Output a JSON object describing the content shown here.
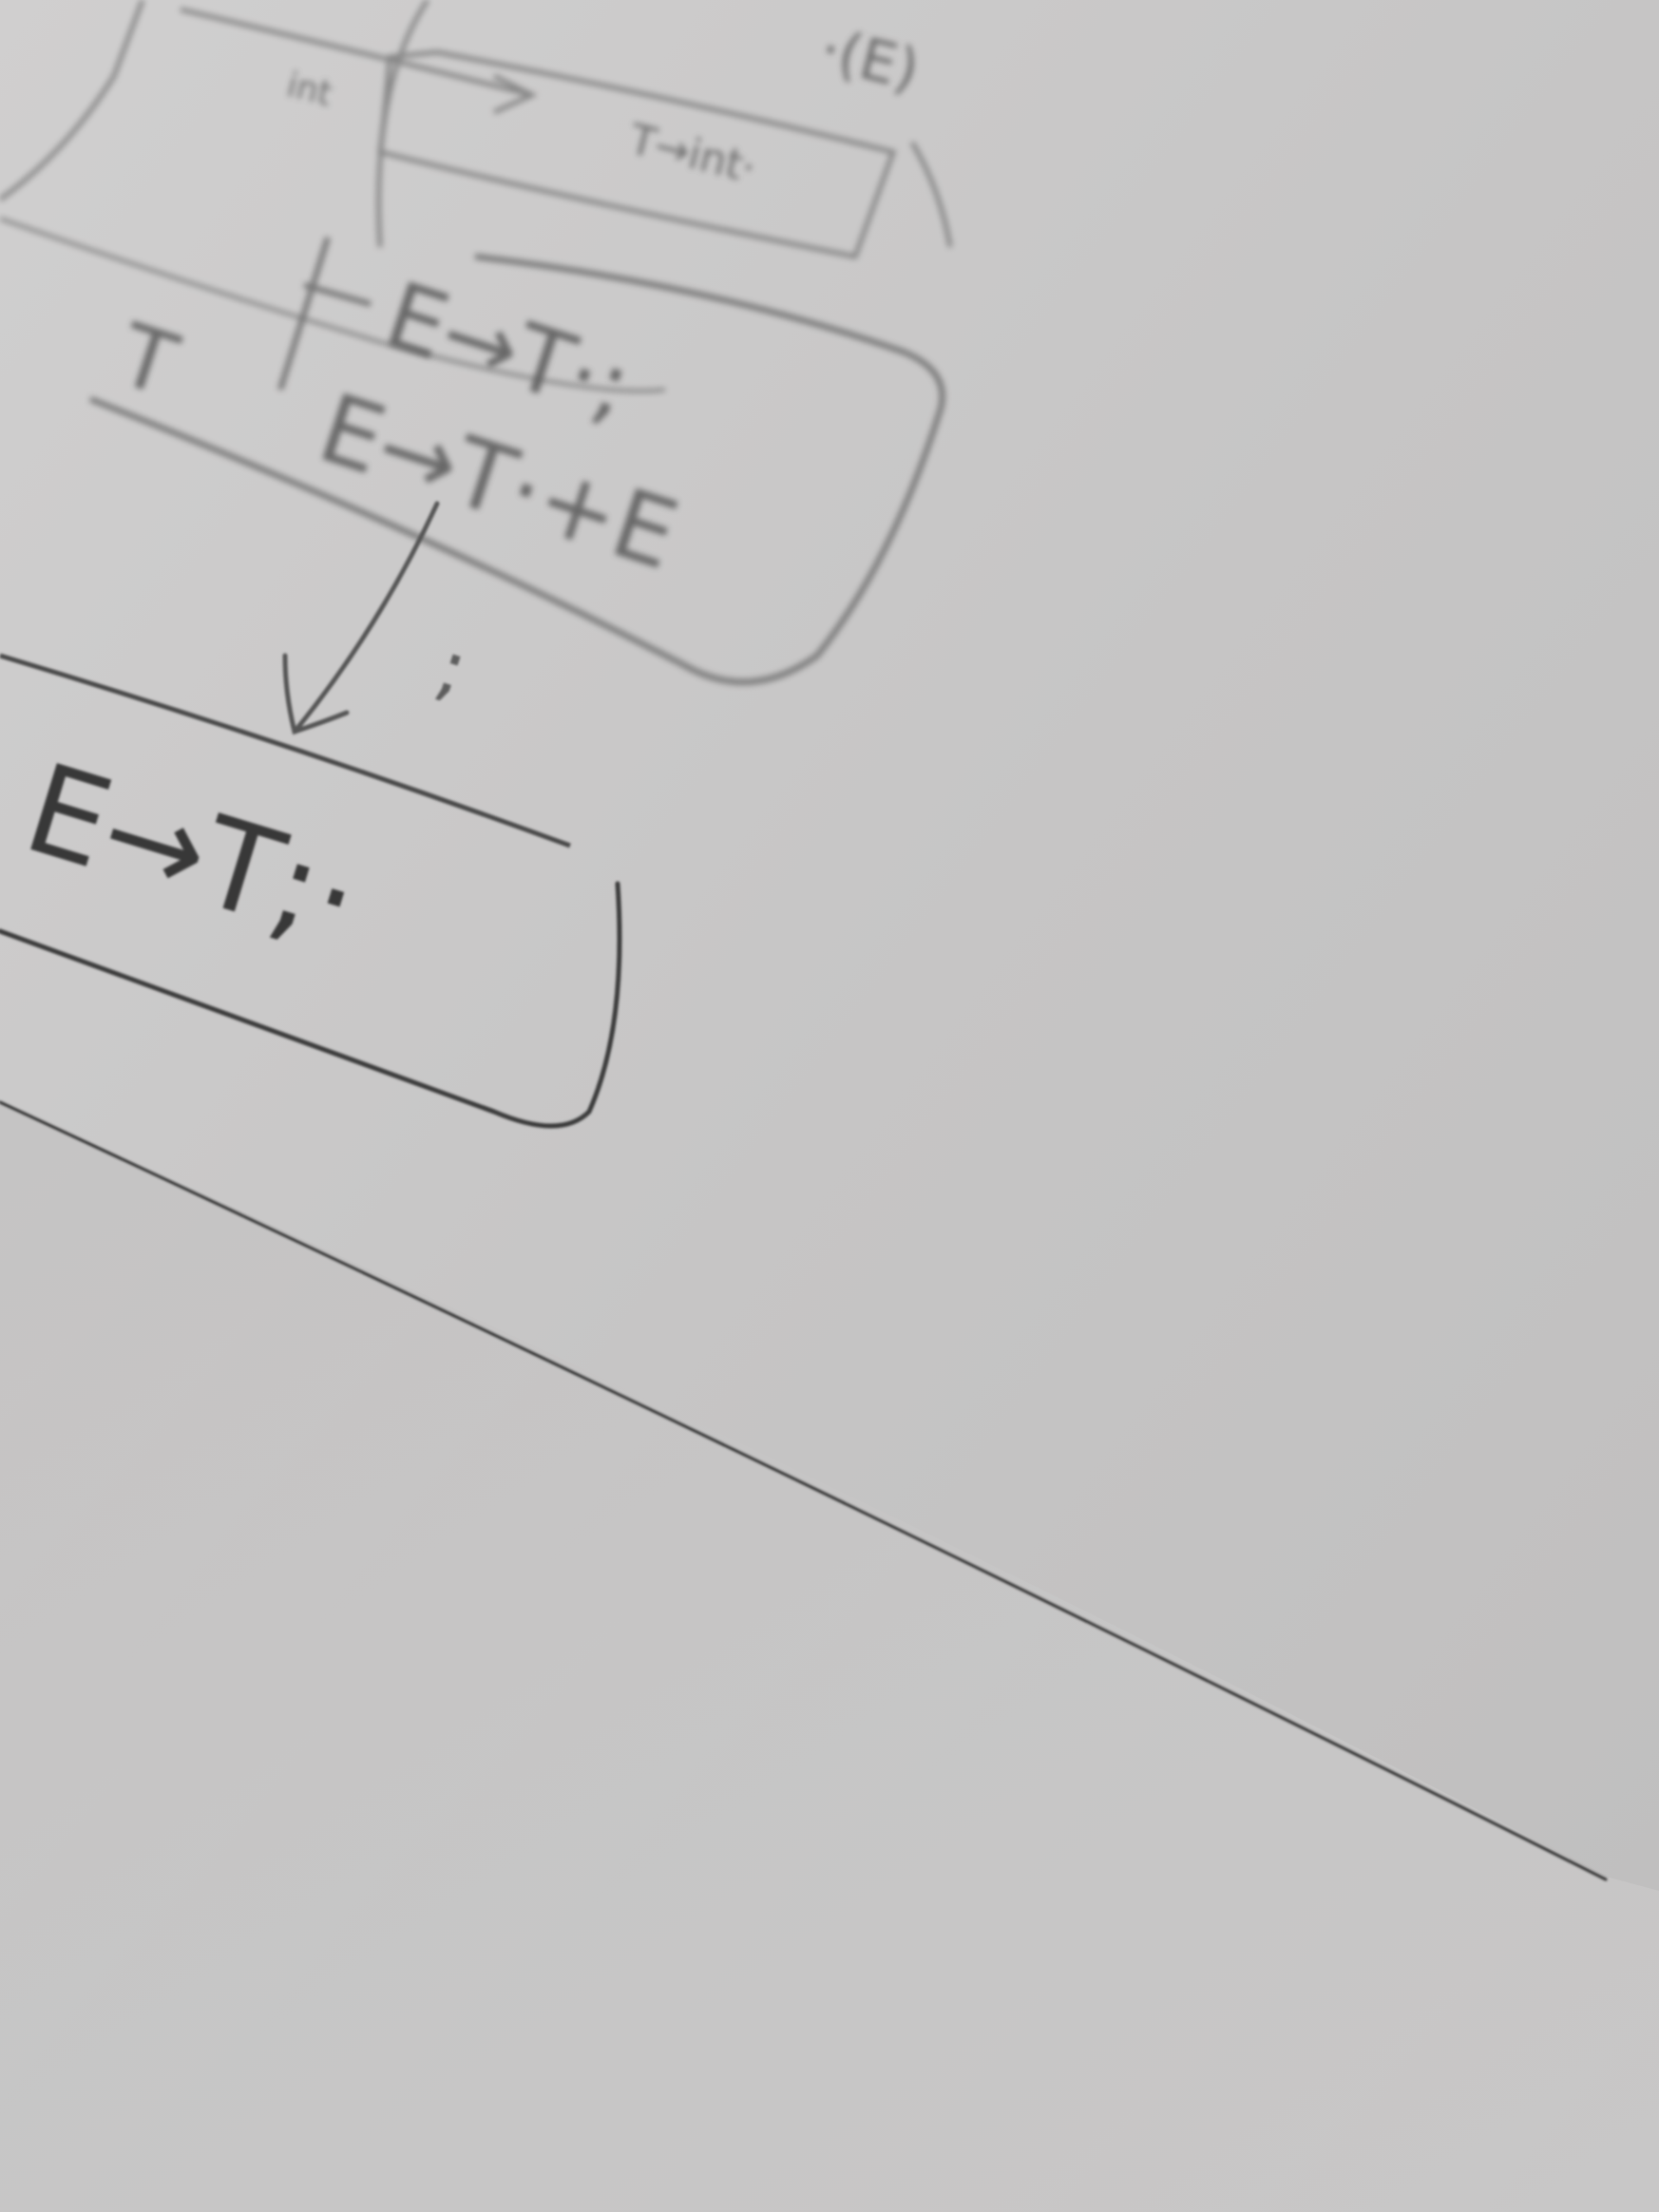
{
  "diagram": {
    "top_state": {
      "edge_label": "int",
      "box_label": "T→int·",
      "corner_label": "·(E)"
    },
    "middle_state": {
      "edge_label": "T",
      "item_1": "E→T·;",
      "item_2": "E→T·+E"
    },
    "transition": {
      "label": ";"
    },
    "bottom_state": {
      "item_1": "E→T;·"
    }
  },
  "colors": {
    "paper": "#c9c8c8",
    "pencil_light": "#6e6e6e",
    "pencil_dark": "#2f2f2f"
  }
}
